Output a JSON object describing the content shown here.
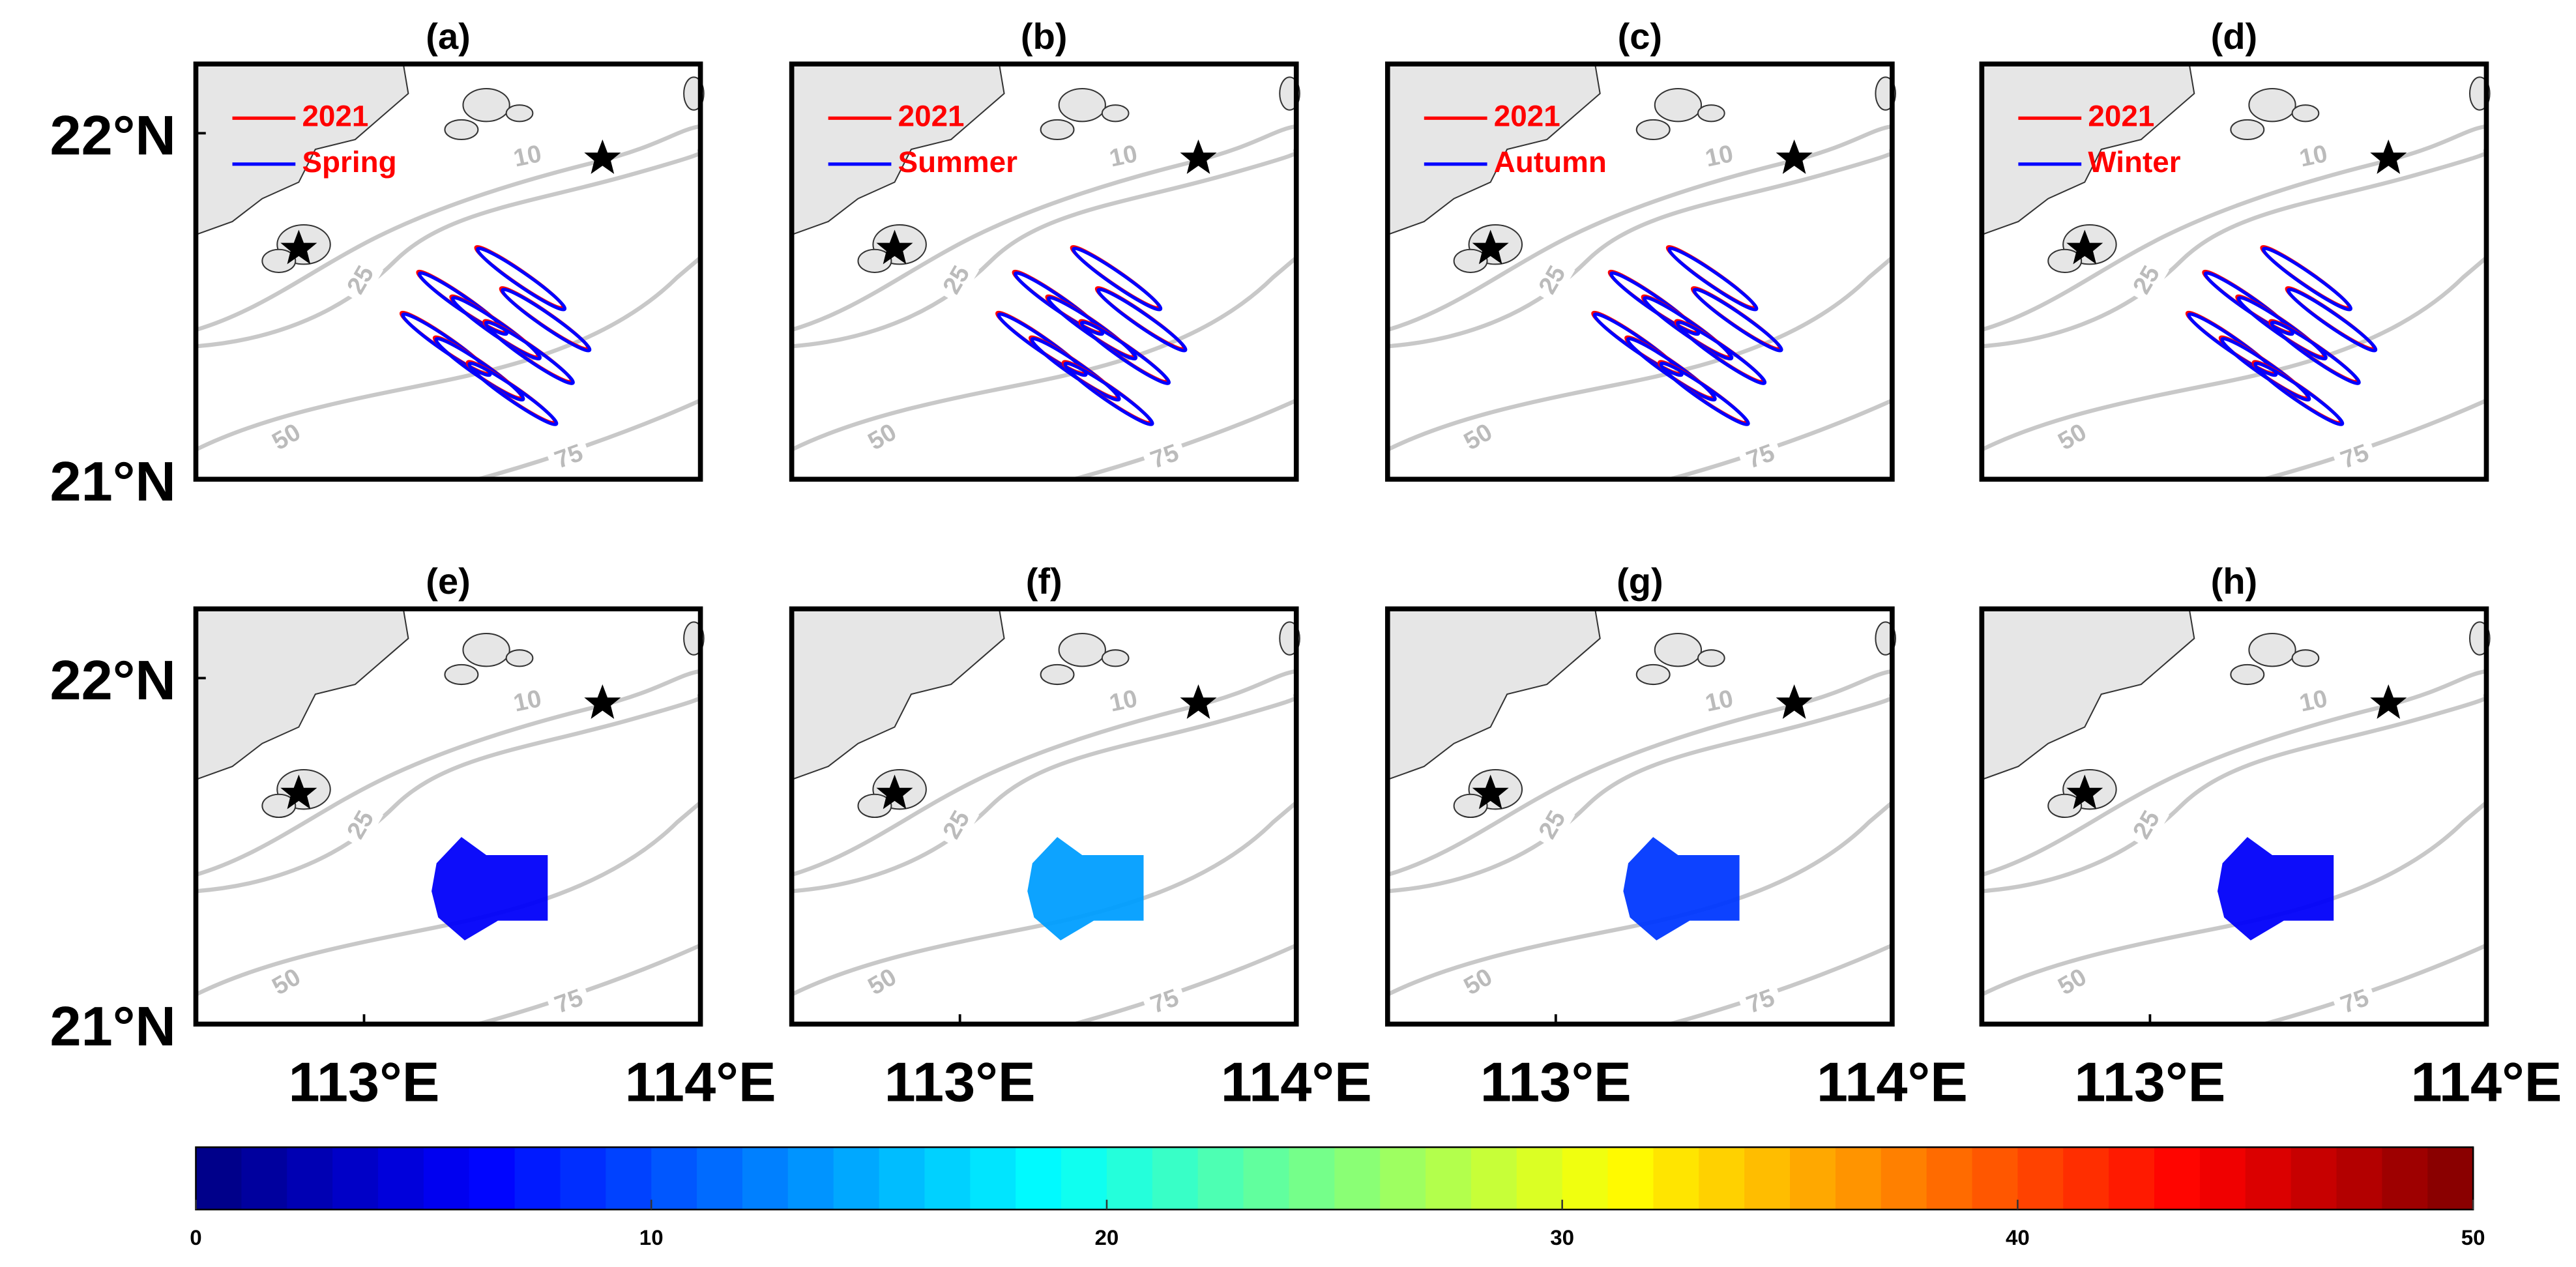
{
  "chart_data": {
    "type": "map",
    "xlim": [
      112.5,
      114.0
    ],
    "ylim": [
      21.0,
      22.2
    ],
    "xticks": [
      {
        "value": 113,
        "label": "113°E"
      },
      {
        "value": 114,
        "label": "114°E"
      }
    ],
    "yticks": [
      {
        "value": 21,
        "label": "21°N"
      },
      {
        "value": 22,
        "label": "22°N"
      }
    ],
    "contour_labels": [
      10,
      25,
      50,
      75
    ],
    "panels": [
      {
        "label": "(a)",
        "legend": [
          {
            "name": "2021",
            "color": "#ff0000"
          },
          {
            "name": "Spring",
            "color": "#0000ff"
          }
        ]
      },
      {
        "label": "(b)",
        "legend": [
          {
            "name": "2021",
            "color": "#ff0000"
          },
          {
            "name": "Summer",
            "color": "#0000ff"
          }
        ]
      },
      {
        "label": "(c)",
        "legend": [
          {
            "name": "2021",
            "color": "#ff0000"
          },
          {
            "name": "Autumn",
            "color": "#0000ff"
          }
        ]
      },
      {
        "label": "(d)",
        "legend": [
          {
            "name": "2021",
            "color": "#ff0000"
          },
          {
            "name": "Winter",
            "color": "#0000ff"
          }
        ]
      },
      {
        "label": "(e)",
        "value": 6
      },
      {
        "label": "(f)",
        "value": 14
      },
      {
        "label": "(g)",
        "value": 9
      },
      {
        "label": "(h)",
        "value": 6
      }
    ],
    "colorbar": {
      "lim": [
        0,
        50
      ],
      "ticks": [
        0,
        10,
        20,
        30,
        40,
        50
      ]
    }
  }
}
